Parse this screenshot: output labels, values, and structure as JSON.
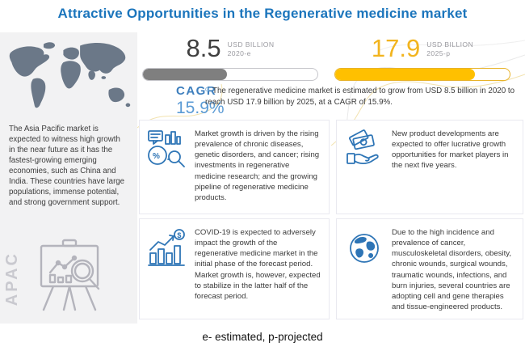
{
  "title": "Attractive Opportunities in the Regenerative medicine market",
  "sidebar": {
    "region_text": "The Asia Pacific market is expected to witness high growth in the near future as it has the fastest-growing emerging economies, such as China and India. These countries have large populations, immense potential, and strong government support.",
    "region_label": "APAC",
    "map_icon": "world-map",
    "easel_icon": "market-research-easel-icon"
  },
  "stats": {
    "start": {
      "value": "8.5",
      "unit": "USD BILLION",
      "year": "2020-e",
      "fill_percent": 48,
      "color": "#7F7F7F"
    },
    "end": {
      "value": "17.9",
      "unit": "USD BILLION",
      "year": "2025-p",
      "fill_percent": 80,
      "color": "#FFC000"
    }
  },
  "cagr": {
    "label": "CAGR",
    "value": "15.9%",
    "description": "The regenerative medicine market is estimated to grow from USD 8.5 billion in 2020 to reach USD 17.9 billion by 2025, at a CAGR of 15.9%."
  },
  "insights": [
    {
      "icon": "market-analysis-icon",
      "text": "Market growth is driven by the rising prevalence of chronic diseases, genetic disorders, and cancer; rising investments in regenerative medicine research; and the growing pipeline of regenerative medicine products."
    },
    {
      "icon": "money-hand-icon",
      "text": "New product developments are expected to offer lucrative growth opportunities for market players in the next five years."
    },
    {
      "icon": "growth-chart-icon",
      "text": "COVID-19 is expected to adversely impact the growth of the regenerative medicine market in the initial phase of the forecast period. Market growth is, however, expected to stabilize in the latter half of the forecast period."
    },
    {
      "icon": "globe-icon",
      "text": "Due to the high incidence and prevalence of cancer, musculoskeletal disorders, obesity, chronic wounds, surgical wounds, traumatic wounds, infections, and burn injuries, several countries are adopting cell and gene therapies and tissue-engineered products."
    }
  ],
  "footer": {
    "note": "e- estimated, p-projected"
  },
  "colors": {
    "title_blue": "#1B75BC",
    "icon_blue": "#2E75B6",
    "cagr_blue": "#5B9BD5",
    "bar_gray": "#7F7F7F",
    "bar_yellow": "#FFC000",
    "value_yellow": "#F2B41E",
    "sidebar_bg": "#F2F2F3",
    "map_gray": "#6B7888"
  },
  "chart_data": {
    "type": "bar",
    "categories": [
      "2020-e",
      "2025-p"
    ],
    "values": [
      8.5,
      17.9
    ],
    "series_unit": "USD Billion",
    "cagr_percent": 15.9,
    "title": "Attractive Opportunities in the Regenerative medicine market",
    "notes": "e- estimated, p-projected"
  }
}
